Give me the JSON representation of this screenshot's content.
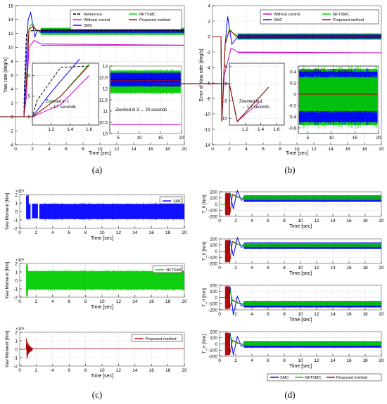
{
  "chart_data": [
    {
      "id": "a",
      "type": "line",
      "caption": "(a)",
      "ylabel": "Yaw rate [deg/s]",
      "xlabel": "Time [sec]",
      "xlim": [
        0,
        20
      ],
      "ylim": [
        -4,
        16
      ],
      "xticks": [
        0,
        2,
        4,
        6,
        8,
        10,
        12,
        14,
        16,
        18,
        20
      ],
      "yticks": [
        -4,
        -2,
        0,
        2,
        4,
        6,
        8,
        10,
        12,
        14,
        16
      ],
      "legend": [
        "Reference",
        "Without control",
        "SMC",
        "NFTSMC",
        "Proposed method"
      ],
      "series": [
        {
          "name": "Reference",
          "color": "#000000",
          "dash": "4,2",
          "x": [
            0,
            1,
            1.05,
            1.3,
            1.6,
            2,
            20
          ],
          "y": [
            0,
            0,
            4,
            12,
            12.3,
            12.4,
            12.4
          ]
        },
        {
          "name": "Without control",
          "color": "#cc00cc",
          "x": [
            0,
            1,
            1.3,
            1.6,
            2.2,
            3,
            20
          ],
          "y": [
            0,
            0,
            3,
            10,
            11,
            10.5,
            10.3
          ]
        },
        {
          "name": "SMC",
          "color": "#0000ff",
          "x": [
            0,
            1,
            1.2,
            1.5,
            1.8,
            2.3,
            2.6,
            3,
            20
          ],
          "y": [
            0,
            0,
            6,
            14,
            15,
            11.5,
            12.5,
            12.2,
            12.3
          ]
        },
        {
          "name": "NFTSMC",
          "color": "#00cc00",
          "x": [
            0,
            1,
            1.3,
            1.6,
            2,
            2.5,
            3,
            20
          ],
          "y": [
            0,
            0,
            5,
            12.8,
            13.5,
            12.3,
            12.1,
            12.1
          ]
        },
        {
          "name": "Proposed method",
          "color": "#aa0000",
          "x": [
            0,
            1,
            1.3,
            1.6,
            2,
            2.5,
            3,
            20
          ],
          "y": [
            0,
            0,
            5,
            12.5,
            13,
            12.5,
            12.4,
            12.4
          ]
        }
      ],
      "inset1": {
        "xticks": [
          1.2,
          1.4,
          1.6
        ],
        "yticks": [
          0,
          5,
          10
        ],
        "label": [
          "Zoomed in 1",
          "→ 1.7 seconds"
        ]
      },
      "inset2": {
        "xticks": [
          5,
          10,
          15,
          20
        ],
        "yticks": [
          10,
          10.5,
          11,
          11.5,
          12,
          12.5,
          13
        ],
        "label": "Zoomed in 3 → 20 seconds"
      }
    },
    {
      "id": "b",
      "type": "line",
      "caption": "(b)",
      "ylabel": "Error of Yaw rate [deg/s]",
      "xlabel": "Time [sec]",
      "xlim": [
        0,
        20
      ],
      "ylim": [
        -14,
        4
      ],
      "xticks": [
        0,
        2,
        4,
        6,
        8,
        10,
        12,
        14,
        16,
        18,
        20
      ],
      "yticks": [
        -14,
        -12,
        -10,
        -8,
        -6,
        -4,
        -2,
        0,
        2,
        4
      ],
      "legend": [
        "Without control",
        "SMC",
        "NFTSMC",
        "Proposed method"
      ],
      "series": [
        {
          "name": "Without control",
          "color": "#cc00cc",
          "x": [
            0,
            1,
            1.1,
            1.4,
            2.2,
            3,
            20
          ],
          "y": [
            0,
            0,
            -11,
            -5,
            -1.5,
            -2,
            -2.1
          ]
        },
        {
          "name": "SMC",
          "color": "#0000ff",
          "x": [
            0,
            1,
            1.1,
            1.5,
            1.8,
            2.3,
            3,
            20
          ],
          "y": [
            0,
            0,
            -11,
            -1,
            2.6,
            -1,
            0,
            0
          ]
        },
        {
          "name": "NFTSMC",
          "color": "#00cc00",
          "x": [
            0,
            1,
            1.1,
            1.5,
            2,
            3,
            20
          ],
          "y": [
            0,
            0,
            -11,
            -1,
            1,
            -0.3,
            -0.3
          ]
        },
        {
          "name": "Proposed method",
          "color": "#aa0000",
          "x": [
            0,
            1,
            1.1,
            1.5,
            2,
            3,
            20
          ],
          "y": [
            0,
            0,
            -11,
            -1,
            0.8,
            0,
            0
          ]
        }
      ],
      "inset1": {
        "xticks": [
          1.2,
          1.4,
          1.6
        ],
        "yticks": [
          -10,
          -5,
          0,
          5
        ],
        "label": [
          "Zoomed in 1",
          "→ 1.7 seconds"
        ]
      },
      "inset2": {
        "xticks": [
          5,
          10,
          15,
          20
        ],
        "yticks": [
          -0.6,
          -0.4,
          -0.2,
          0,
          0.2,
          0.4
        ],
        "label": "Zoomed in 3 → 20 seconds"
      }
    },
    {
      "id": "c",
      "type": "line",
      "caption": "(c)",
      "xlabel": "Time [sec]",
      "ylabel": "Yaw Moment [Nm]",
      "exponent": "×10⁴",
      "xlim": [
        0,
        20
      ],
      "ylim": [
        -2,
        2
      ],
      "xticks": [
        0,
        2,
        4,
        6,
        8,
        10,
        12,
        14,
        16,
        18,
        20
      ],
      "yticks": [
        -2,
        -1,
        0,
        1,
        2
      ],
      "panels": [
        {
          "legend": "SMC",
          "color": "#0000ff",
          "band": [
            -0.9,
            0.9
          ]
        },
        {
          "legend": "NFTSMC",
          "color": "#00cc00",
          "band": [
            -1.1,
            1.1
          ]
        },
        {
          "legend": "Proposed method",
          "color": "#aa0000",
          "band": [
            -0.02,
            0.02
          ]
        }
      ]
    },
    {
      "id": "d",
      "type": "line",
      "caption": "(d)",
      "xlabel": "Time [sec]",
      "xlim": [
        0,
        20
      ],
      "ylim": [
        -200,
        200
      ],
      "xticks": [
        0,
        2,
        4,
        6,
        8,
        10,
        12,
        14,
        16,
        18,
        20
      ],
      "yticks": [
        -200,
        -100,
        0,
        100,
        200
      ],
      "legend": [
        "SMC",
        "NFTSMC",
        "Proposed method"
      ],
      "colors": {
        "SMC": "#0000ff",
        "NFTSMC": "#00cc00",
        "Proposed method": "#aa0000"
      },
      "panels": [
        {
          "ylabel": "T_fl [Nm]",
          "level": 100
        },
        {
          "ylabel": "T_fr [Nm]",
          "level": 100
        },
        {
          "ylabel": "T_rl [Nm]",
          "level": -100
        },
        {
          "ylabel": "T_rr [Nm]",
          "level": 0
        }
      ]
    }
  ]
}
